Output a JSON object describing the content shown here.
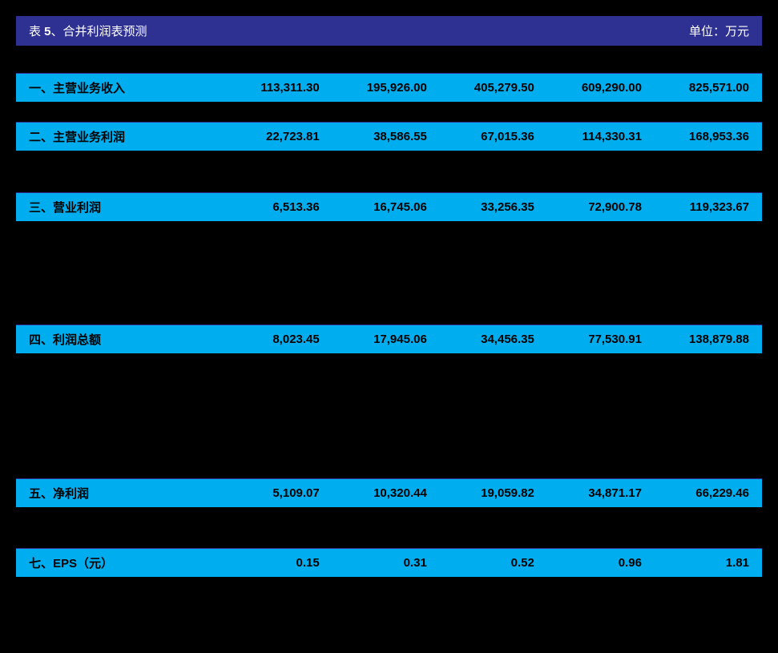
{
  "title": {
    "prefix": "表 ",
    "number": "5",
    "suffix": "、合并利润表预测",
    "unit": "单位：万元"
  },
  "colors": {
    "header_bg": "#2e3192",
    "highlight_bg": "#00aeef",
    "normal_bg": "#000000",
    "text_highlight": "#000000",
    "text_header": "#ffffff",
    "border": "#2e3192"
  },
  "rows": [
    {
      "type": "highlight",
      "label": "一、主营业务收入",
      "values": [
        "113,311.30",
        "195,926.00",
        "405,279.50",
        "609,290.00",
        "825,571.00"
      ]
    },
    {
      "type": "highlight",
      "label": "二、主营业务利润",
      "values": [
        "22,723.81",
        "38,586.55",
        "67,015.36",
        "114,330.31",
        "168,953.36"
      ]
    },
    {
      "type": "highlight",
      "label": "三、营业利润",
      "values": [
        "6,513.36",
        "16,745.06",
        "33,256.35",
        "72,900.78",
        "119,323.67"
      ]
    },
    {
      "type": "highlight",
      "label": "四、利润总额",
      "values": [
        "8,023.45",
        "17,945.06",
        "34,456.35",
        "77,530.91",
        "138,879.88"
      ]
    },
    {
      "type": "highlight",
      "label": "五、净利润",
      "values": [
        "5,109.07",
        "10,320.44",
        "19,059.82",
        "34,871.17",
        "66,229.46"
      ]
    },
    {
      "type": "highlight",
      "label": "七、EPS（元）",
      "values": [
        "0.15",
        "0.31",
        "0.52",
        "0.96",
        "1.81"
      ]
    }
  ],
  "spacers": [
    1,
    2,
    5,
    6,
    2,
    1,
    0
  ]
}
